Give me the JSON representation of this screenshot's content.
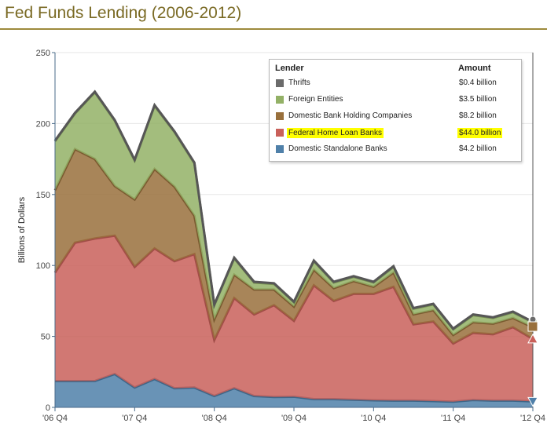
{
  "title": "Fed Funds Lending (2006-2012)",
  "colors": {
    "title": "#7a6a24",
    "thrifts": "#6b6b6b",
    "foreign": "#93b166",
    "domestic_bhc": "#99703c",
    "fhlb": "#c9605a",
    "standalone": "#4f80a9"
  },
  "legend": {
    "header_name": "Lender",
    "header_amount": "Amount",
    "items": [
      {
        "key": "thrifts",
        "label": "Thrifts",
        "amount": "$0.4 billion",
        "highlighted": false
      },
      {
        "key": "foreign",
        "label": "Foreign Entities",
        "amount": "$3.5 billion",
        "highlighted": false
      },
      {
        "key": "domestic_bhc",
        "label": "Domestic Bank Holding Companies",
        "amount": "$8.2 billion",
        "highlighted": false
      },
      {
        "key": "fhlb",
        "label": "Federal Home Loan Banks",
        "amount": "$44.0 billion",
        "highlighted": true
      },
      {
        "key": "standalone",
        "label": "Domestic Standalone Banks",
        "amount": "$4.2 billion",
        "highlighted": false
      }
    ]
  },
  "chart_data": {
    "type": "area",
    "stacked": true,
    "ylabel": "Billions of Dollars",
    "xlabel": "",
    "ylim": [
      0,
      250
    ],
    "yticks": [
      0,
      50,
      100,
      150,
      200,
      250
    ],
    "xlim": [
      "2006 Q4",
      "2012 Q4"
    ],
    "xticks": [
      "'06 Q4",
      "'07 Q4",
      "'08 Q4",
      "'09 Q4",
      "'10 Q4",
      "'11 Q4",
      "'12 Q4"
    ],
    "x": [
      "2006 Q4",
      "2007 Q1",
      "2007 Q2",
      "2007 Q3",
      "2007 Q4",
      "2008 Q1",
      "2008 Q2",
      "2008 Q3",
      "2008 Q4",
      "2009 Q1",
      "2009 Q2",
      "2009 Q3",
      "2009 Q4",
      "2010 Q1",
      "2010 Q2",
      "2010 Q3",
      "2010 Q4",
      "2011 Q1",
      "2011 Q2",
      "2011 Q3",
      "2011 Q4",
      "2012 Q1",
      "2012 Q2",
      "2012 Q3",
      "2012 Q4"
    ],
    "series": [
      {
        "name": "Domestic Standalone Banks",
        "color_key": "standalone",
        "values": [
          18.5,
          18.5,
          18.6,
          23.5,
          14.0,
          20.0,
          13.5,
          14.0,
          8.0,
          13.5,
          8.0,
          7.3,
          7.5,
          5.8,
          5.8,
          5.4,
          5.0,
          4.8,
          4.8,
          4.4,
          4.0,
          5.2,
          4.8,
          4.8,
          4.2
        ]
      },
      {
        "name": "Federal Home Loan Banks",
        "color_key": "fhlb",
        "values": [
          76.5,
          97.5,
          100.4,
          97.5,
          85.0,
          92.0,
          89.5,
          94.0,
          39.5,
          63.5,
          57.5,
          64.7,
          53.5,
          80.2,
          69.2,
          74.6,
          75.0,
          80.2,
          53.7,
          56.1,
          41.0,
          47.3,
          46.7,
          51.7,
          44.0
        ]
      },
      {
        "name": "Domestic Bank Holding Companies",
        "color_key": "domestic_bhc",
        "values": [
          58.0,
          66.0,
          56.0,
          35.0,
          47.5,
          56.0,
          52.5,
          27.0,
          14.5,
          16.5,
          17.5,
          11.0,
          10.0,
          11.0,
          9.0,
          9.0,
          5.0,
          10.0,
          7.0,
          8.0,
          6.0,
          7.5,
          7.5,
          6.5,
          8.2
        ]
      },
      {
        "name": "Foreign Entities",
        "color_key": "foreign",
        "values": [
          34.5,
          25.0,
          47.0,
          46.0,
          27.5,
          44.5,
          38.5,
          37.0,
          10.0,
          11.5,
          5.0,
          4.0,
          3.0,
          6.0,
          4.0,
          3.0,
          3.0,
          4.0,
          4.0,
          4.0,
          4.0,
          5.0,
          4.0,
          4.0,
          3.5
        ]
      },
      {
        "name": "Thrifts",
        "color_key": "thrifts",
        "values": [
          0.5,
          0.5,
          0.5,
          0.5,
          0.5,
          0.5,
          0.5,
          0.5,
          0.5,
          0.5,
          0.5,
          0.5,
          0.5,
          0.5,
          0.5,
          0.5,
          0.5,
          0.5,
          0.5,
          0.5,
          0.5,
          0.5,
          0.5,
          0.5,
          0.4
        ]
      }
    ],
    "grid": true,
    "legend_position": "top-right"
  }
}
